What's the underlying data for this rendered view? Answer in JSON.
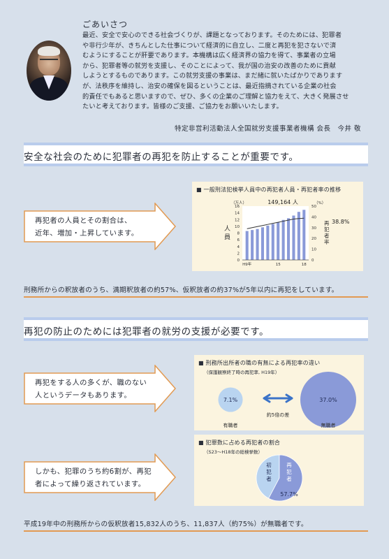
{
  "greeting": {
    "title": "ごあいさつ",
    "paragraph": [
      "最近、安全で安心のできる社会づくりが、課題となっております。そのためには、犯罪者",
      "や非行少年が、きちんとした仕事について経済的に自立し、二度と再犯を犯さないで済",
      "むようにすることが肝要であります。本機構は広く経済界の協力を得て、事業者の立場",
      "から、犯罪者等の就労を支援し、そのことによって、我が国の治安の改善のために貢献",
      "しようとするものであります。この就労支援の事業は、まだ緒に就いたばかりであります",
      "が、法秩序を維持し、治安の確保を図るということは、最近指摘されている企業の社会",
      "的責任でもあると思いますので、ぜひ、多くの企業のご理解と協力をえて、大きく発展させ",
      "たいと考えております。皆様のご支援、ご協力をお願いいたします。"
    ],
    "signature": "特定非営利活動法人全国就労支援事業者機構 会長　今井 敬"
  },
  "section1": {
    "title": "安全な社会のために犯罪者の再犯を防止することが重要です。",
    "arrow_lines": [
      "再犯者の人員とその割合は、",
      "近年、増加・上昇しています。"
    ],
    "note": "刑務所からの釈放者のうち、満期釈放者の約57%、仮釈放者の約37%が5年以内に再犯をしています。"
  },
  "section2": {
    "title": "再犯の防止のためには犯罪者の就労の支援が必要です。",
    "arrow1_lines": [
      "再犯をする人の多くが、職のない",
      "人というデータもあります。"
    ],
    "arrow2_lines": [
      "しかも、犯罪のうち約6割が、再犯",
      "者によって繰り返されています。"
    ],
    "note": "平成19年中の刑務所からの仮釈放者15,832人のうち、11,837人（約75%）が無職者です。"
  },
  "colors": {
    "accent_line": "#b9ccec",
    "orange": "#e29a52",
    "bar": "#8a9ad8",
    "panel": "#fbf4df"
  },
  "chart_data": [
    {
      "type": "bar",
      "title": "一般刑法犯検挙人員中の再犯者人員・再犯者率の推移",
      "unit_left": "（万人）",
      "unit_right": "（%）",
      "ylabel": "人員",
      "y2label": "再犯者率",
      "yticks": [
        0,
        2,
        4,
        6,
        8,
        10,
        12,
        14,
        16
      ],
      "y2ticks": [
        0,
        10,
        20,
        30,
        40,
        50
      ],
      "ylim": [
        0,
        16
      ],
      "y2lim": [
        0,
        50
      ],
      "xtick_labels": [
        "H9年",
        "15",
        "18"
      ],
      "bars": [
        8.6,
        8.9,
        9.2,
        9.7,
        10.2,
        10.7,
        11.2,
        11.9,
        12.4,
        13.2,
        14.3,
        14.9
      ],
      "line": [
        29,
        30,
        31,
        32,
        33,
        34,
        35,
        36,
        37,
        38,
        38.5,
        38.8
      ],
      "annotation_bar": "149,164 人",
      "annotation_line": "38.8%"
    },
    {
      "type": "bubble",
      "title": "刑務所出所者の職の有無による再犯率の違い",
      "subtitle": "（保護観察終了時の再犯率, H19年）",
      "items": [
        {
          "label": "有職者",
          "value": 7.1,
          "value_text": "7.1%"
        },
        {
          "label": "無職者",
          "value": 37.0,
          "value_text": "37.0%"
        }
      ],
      "difference_label": "約5倍の差"
    },
    {
      "type": "pie",
      "title": "犯罪数に占める再犯者の割合",
      "subtitle": "（S23〜H18年の総検挙数）",
      "slices": [
        {
          "label": "初犯者",
          "value": 42.3
        },
        {
          "label": "再犯者",
          "value": 57.7,
          "value_text": "57.7%"
        }
      ]
    }
  ]
}
